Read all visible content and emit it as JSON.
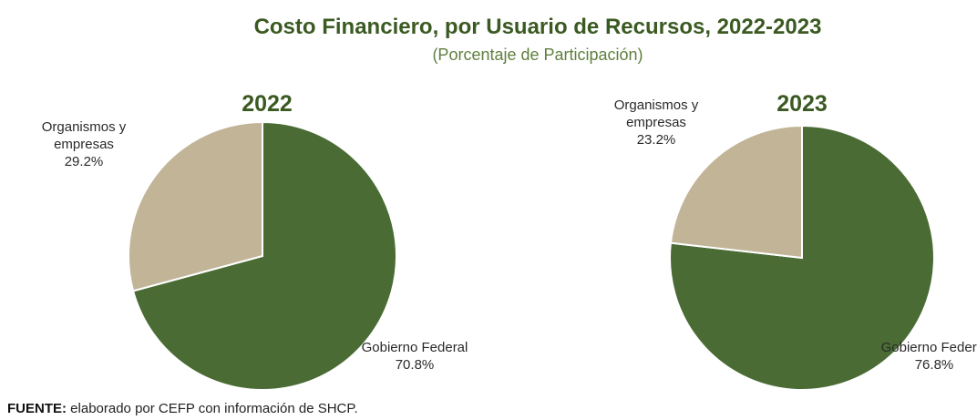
{
  "title": "Costo Financiero, por Usuario de Recursos, 2022-2023",
  "subtitle": "(Porcentaje de Participación)",
  "source": {
    "label": "FUENTE:",
    "text": "elaborado por CEFP con información de SHCP."
  },
  "chart_data": [
    {
      "type": "pie",
      "title": "2022",
      "categories": [
        "Gobierno Federal",
        "Organismos y empresas"
      ],
      "values": [
        70.8,
        29.2
      ],
      "value_labels": [
        "70.8%",
        "29.2%"
      ],
      "colors": [
        "#4a6b34",
        "#c1b497"
      ]
    },
    {
      "type": "pie",
      "title": "2023",
      "categories": [
        "Gobierno Federal",
        "Organismos y empresas"
      ],
      "values": [
        76.8,
        23.2
      ],
      "value_labels": [
        "76.8%",
        "23.2%"
      ],
      "colors": [
        "#4a6b34",
        "#c1b497"
      ]
    }
  ]
}
